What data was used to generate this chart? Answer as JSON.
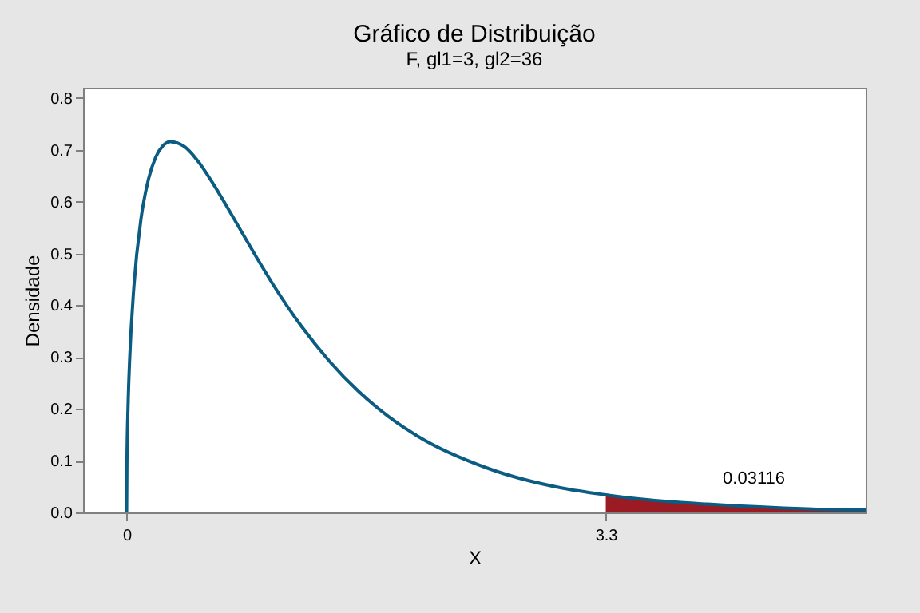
{
  "chart_data": {
    "type": "line",
    "title": "Gráfico de Distribuição",
    "subtitle": "F, gl1=3, gl2=36",
    "xlabel": "X",
    "ylabel": "Densidade",
    "xlim": [
      -0.3,
      5.09
    ],
    "xticks": [
      0,
      3.3
    ],
    "ylim": [
      0,
      0.82
    ],
    "yticks": [
      {
        "value": 0,
        "label": "0.0"
      },
      0.1,
      0.2,
      0.3,
      0.4,
      0.5,
      0.6,
      0.7,
      0.8
    ],
    "grid": false,
    "marker": "none",
    "line_style": "solid",
    "annotations": [
      "0.03116"
    ],
    "series": [
      {
        "type": "area",
        "color": "#9b1b24",
        "x": [
          3.3,
          3.5,
          4.0,
          4.5,
          5.0,
          5.09
        ],
        "values": [
          0.034,
          0.027,
          0.016,
          0.009,
          0.005,
          0.005
        ]
      },
      {
        "color": "#0b5c82",
        "x": [
          0,
          0.002,
          0.01,
          0.02,
          0.05,
          0.1,
          0.15,
          0.2,
          0.25,
          0.3,
          0.4,
          0.5,
          0.6,
          0.7,
          0.8,
          0.9,
          1.0,
          1.2,
          1.4,
          1.6,
          1.8,
          2.0,
          2.5,
          3.0,
          3.3,
          3.5,
          4.0,
          4.5,
          5.0,
          5.09
        ],
        "values": [
          0,
          0.094,
          0.208,
          0.29,
          0.436,
          0.569,
          0.643,
          0.686,
          0.708,
          0.716,
          0.706,
          0.675,
          0.633,
          0.586,
          0.538,
          0.49,
          0.444,
          0.361,
          0.291,
          0.233,
          0.186,
          0.148,
          0.084,
          0.047,
          0.034,
          0.027,
          0.016,
          0.009,
          0.005,
          0.005
        ]
      }
    ]
  }
}
